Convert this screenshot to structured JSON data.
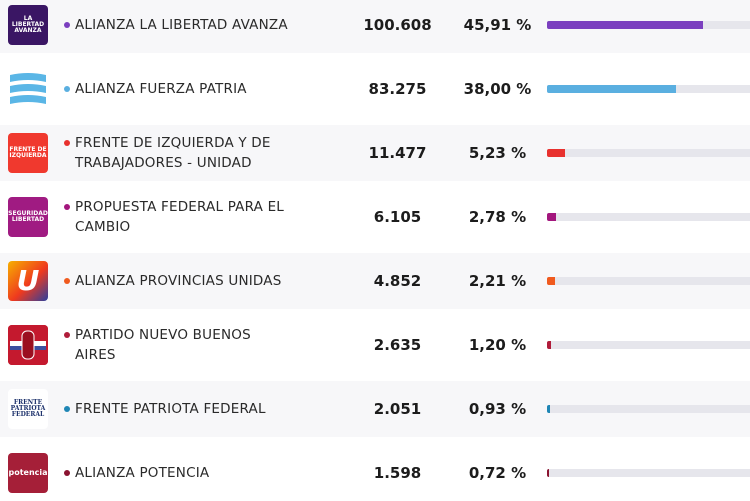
{
  "parties": [
    {
      "name": "ALIANZA LA LIBERTAD AVANZA",
      "votes": "100.608",
      "percent_label": "45,91 %",
      "percent": 45.91,
      "color": "#7b3fbf",
      "logo_bg": "#3a1664",
      "logo_text": "LA LIBERTAD AVANZA"
    },
    {
      "name": "ALIANZA FUERZA PATRIA",
      "votes": "83.275",
      "percent_label": "38,00 %",
      "percent": 38.0,
      "color": "#5aafe0",
      "logo_bg": "#ffffff",
      "logo_text": ""
    },
    {
      "name": "FRENTE DE IZQUIERDA Y DE TRABAJADORES - UNIDAD",
      "votes": "11.477",
      "percent_label": "5,23 %",
      "percent": 5.23,
      "color": "#e8312e",
      "logo_bg": "#f0392e",
      "logo_text": "FRENTE DE IZQUIERDA"
    },
    {
      "name": "PROPUESTA FEDERAL PARA EL CAMBIO",
      "votes": "6.105",
      "percent_label": "2,78 %",
      "percent": 2.78,
      "color": "#a3167d",
      "logo_bg": "#a01b82",
      "logo_text": "SEGURIDAD LIBERTAD"
    },
    {
      "name": "ALIANZA PROVINCIAS UNIDAS",
      "votes": "4.852",
      "percent_label": "2,21 %",
      "percent": 2.21,
      "color": "#f05a1e",
      "logo_bg": "#f07a10",
      "logo_text": "U"
    },
    {
      "name": "PARTIDO NUEVO BUENOS AIRES",
      "votes": "2.635",
      "percent_label": "1,20 %",
      "percent": 1.2,
      "color": "#b01c3a",
      "logo_bg": "#c4192e",
      "logo_text": ""
    },
    {
      "name": "FRENTE PATRIOTA FEDERAL",
      "votes": "2.051",
      "percent_label": "0,93 %",
      "percent": 0.93,
      "color": "#1f86b5",
      "logo_bg": "#ffffff",
      "logo_text": "FRENTE PATRIOTA FEDERAL"
    },
    {
      "name": "ALIANZA POTENCIA",
      "votes": "1.598",
      "percent_label": "0,72 %",
      "percent": 0.72,
      "color": "#8a1330",
      "logo_bg": "#a51f38",
      "logo_text": "potencia"
    }
  ]
}
